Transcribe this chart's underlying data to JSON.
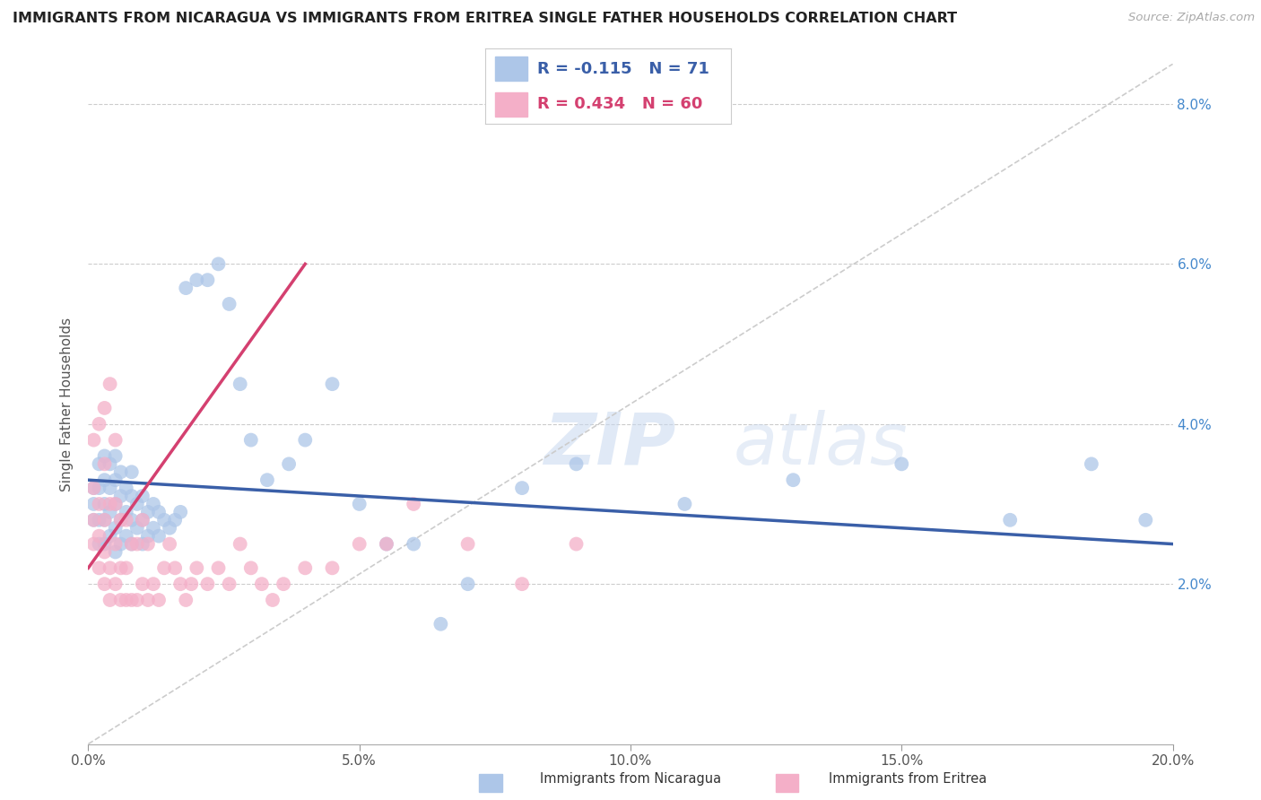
{
  "title": "IMMIGRANTS FROM NICARAGUA VS IMMIGRANTS FROM ERITREA SINGLE FATHER HOUSEHOLDS CORRELATION CHART",
  "source_text": "Source: ZipAtlas.com",
  "ylabel": "Single Father Households",
  "x_min": 0.0,
  "x_max": 0.2,
  "y_min": 0.0,
  "y_max": 0.085,
  "x_ticks": [
    0.0,
    0.05,
    0.1,
    0.15,
    0.2
  ],
  "x_tick_labels": [
    "0.0%",
    "5.0%",
    "10.0%",
    "15.0%",
    "20.0%"
  ],
  "y_ticks": [
    0.02,
    0.04,
    0.06,
    0.08
  ],
  "y_tick_labels": [
    "2.0%",
    "4.0%",
    "6.0%",
    "8.0%"
  ],
  "nicaragua_color": "#adc6e8",
  "eritrea_color": "#f4afc8",
  "nicaragua_R": -0.115,
  "nicaragua_N": 71,
  "eritrea_R": 0.434,
  "eritrea_N": 60,
  "trendline_nicaragua_color": "#3a5fa8",
  "trendline_eritrea_color": "#d44070",
  "watermark_zip": "ZIP",
  "watermark_atlas": "atlas",
  "background_color": "#ffffff",
  "grid_color": "#cccccc",
  "nicaragua_x": [
    0.001,
    0.001,
    0.001,
    0.002,
    0.002,
    0.002,
    0.002,
    0.003,
    0.003,
    0.003,
    0.003,
    0.003,
    0.004,
    0.004,
    0.004,
    0.004,
    0.005,
    0.005,
    0.005,
    0.005,
    0.005,
    0.006,
    0.006,
    0.006,
    0.006,
    0.007,
    0.007,
    0.007,
    0.008,
    0.008,
    0.008,
    0.008,
    0.009,
    0.009,
    0.01,
    0.01,
    0.01,
    0.011,
    0.011,
    0.012,
    0.012,
    0.013,
    0.013,
    0.014,
    0.015,
    0.016,
    0.017,
    0.018,
    0.02,
    0.022,
    0.024,
    0.026,
    0.028,
    0.03,
    0.033,
    0.037,
    0.04,
    0.045,
    0.05,
    0.055,
    0.06,
    0.065,
    0.07,
    0.08,
    0.09,
    0.11,
    0.13,
    0.15,
    0.17,
    0.185,
    0.195
  ],
  "nicaragua_y": [
    0.028,
    0.03,
    0.032,
    0.025,
    0.028,
    0.032,
    0.035,
    0.025,
    0.028,
    0.03,
    0.033,
    0.036,
    0.026,
    0.029,
    0.032,
    0.035,
    0.024,
    0.027,
    0.03,
    0.033,
    0.036,
    0.025,
    0.028,
    0.031,
    0.034,
    0.026,
    0.029,
    0.032,
    0.025,
    0.028,
    0.031,
    0.034,
    0.027,
    0.03,
    0.025,
    0.028,
    0.031,
    0.026,
    0.029,
    0.027,
    0.03,
    0.026,
    0.029,
    0.028,
    0.027,
    0.028,
    0.029,
    0.057,
    0.058,
    0.058,
    0.06,
    0.055,
    0.045,
    0.038,
    0.033,
    0.035,
    0.038,
    0.045,
    0.03,
    0.025,
    0.025,
    0.015,
    0.02,
    0.032,
    0.035,
    0.03,
    0.033,
    0.035,
    0.028,
    0.035,
    0.028
  ],
  "eritrea_x": [
    0.001,
    0.001,
    0.001,
    0.001,
    0.002,
    0.002,
    0.002,
    0.002,
    0.003,
    0.003,
    0.003,
    0.003,
    0.003,
    0.004,
    0.004,
    0.004,
    0.004,
    0.005,
    0.005,
    0.005,
    0.005,
    0.006,
    0.006,
    0.006,
    0.007,
    0.007,
    0.007,
    0.008,
    0.008,
    0.009,
    0.009,
    0.01,
    0.01,
    0.011,
    0.011,
    0.012,
    0.013,
    0.014,
    0.015,
    0.016,
    0.017,
    0.018,
    0.019,
    0.02,
    0.022,
    0.024,
    0.026,
    0.028,
    0.03,
    0.032,
    0.034,
    0.036,
    0.04,
    0.045,
    0.05,
    0.055,
    0.06,
    0.07,
    0.08,
    0.09
  ],
  "eritrea_y": [
    0.025,
    0.028,
    0.032,
    0.038,
    0.022,
    0.026,
    0.03,
    0.04,
    0.02,
    0.024,
    0.028,
    0.035,
    0.042,
    0.018,
    0.022,
    0.03,
    0.045,
    0.02,
    0.025,
    0.03,
    0.038,
    0.018,
    0.022,
    0.028,
    0.018,
    0.022,
    0.028,
    0.018,
    0.025,
    0.018,
    0.025,
    0.02,
    0.028,
    0.018,
    0.025,
    0.02,
    0.018,
    0.022,
    0.025,
    0.022,
    0.02,
    0.018,
    0.02,
    0.022,
    0.02,
    0.022,
    0.02,
    0.025,
    0.022,
    0.02,
    0.018,
    0.02,
    0.022,
    0.022,
    0.025,
    0.025,
    0.03,
    0.025,
    0.02,
    0.025
  ],
  "nic_trend_x0": 0.0,
  "nic_trend_y0": 0.033,
  "nic_trend_x1": 0.2,
  "nic_trend_y1": 0.025,
  "eri_trend_x0": 0.0,
  "eri_trend_y0": 0.022,
  "eri_trend_x1": 0.04,
  "eri_trend_y1": 0.06
}
